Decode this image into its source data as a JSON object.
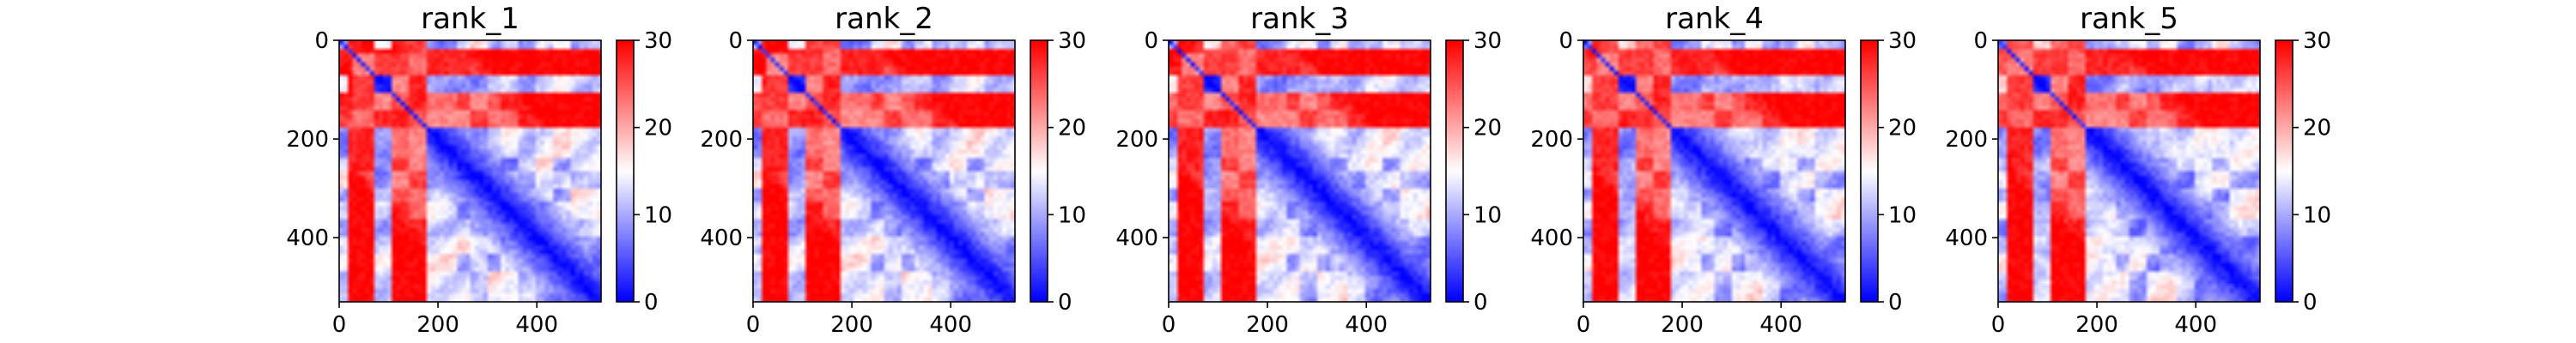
{
  "chart_data": [
    {
      "type": "heatmap",
      "title": "rank_1",
      "matrix_size": 530,
      "xlim": [
        0,
        530
      ],
      "ylim": [
        530,
        0
      ],
      "xticks": [
        0,
        200,
        400
      ],
      "yticks": [
        0,
        200,
        400
      ],
      "colorbar": {
        "min": 0,
        "max": 30,
        "ticks": [
          0,
          10,
          20,
          30
        ]
      },
      "colormap": [
        "#0000ff",
        "#ffffff",
        "#ff0000"
      ],
      "domain_boundaries": [
        20,
        75,
        110,
        145,
        175,
        235,
        265,
        300,
        330,
        360,
        395,
        430,
        470
      ]
    },
    {
      "type": "heatmap",
      "title": "rank_2",
      "matrix_size": 530,
      "xlim": [
        0,
        530
      ],
      "ylim": [
        530,
        0
      ],
      "xticks": [
        0,
        200,
        400
      ],
      "yticks": [
        0,
        200,
        400
      ],
      "colorbar": {
        "min": 0,
        "max": 30,
        "ticks": [
          0,
          10,
          20,
          30
        ]
      },
      "colormap": [
        "#0000ff",
        "#ffffff",
        "#ff0000"
      ],
      "domain_boundaries": [
        20,
        75,
        110,
        145,
        175,
        235,
        265,
        300,
        330,
        360,
        395,
        430,
        470
      ]
    },
    {
      "type": "heatmap",
      "title": "rank_3",
      "matrix_size": 530,
      "xlim": [
        0,
        530
      ],
      "ylim": [
        530,
        0
      ],
      "xticks": [
        0,
        200,
        400
      ],
      "yticks": [
        0,
        200,
        400
      ],
      "colorbar": {
        "min": 0,
        "max": 30,
        "ticks": [
          0,
          10,
          20,
          30
        ]
      },
      "colormap": [
        "#0000ff",
        "#ffffff",
        "#ff0000"
      ],
      "domain_boundaries": [
        20,
        75,
        110,
        145,
        175,
        235,
        265,
        300,
        330,
        360,
        395,
        430,
        470
      ]
    },
    {
      "type": "heatmap",
      "title": "rank_4",
      "matrix_size": 530,
      "xlim": [
        0,
        530
      ],
      "ylim": [
        530,
        0
      ],
      "xticks": [
        0,
        200,
        400
      ],
      "yticks": [
        0,
        200,
        400
      ],
      "colorbar": {
        "min": 0,
        "max": 30,
        "ticks": [
          0,
          10,
          20,
          30
        ]
      },
      "colormap": [
        "#0000ff",
        "#ffffff",
        "#ff0000"
      ],
      "domain_boundaries": [
        20,
        75,
        110,
        145,
        175,
        235,
        265,
        300,
        330,
        360,
        395,
        430,
        470
      ]
    },
    {
      "type": "heatmap",
      "title": "rank_5",
      "matrix_size": 530,
      "xlim": [
        0,
        530
      ],
      "ylim": [
        530,
        0
      ],
      "xticks": [
        0,
        200,
        400
      ],
      "yticks": [
        0,
        200,
        400
      ],
      "colorbar": {
        "min": 0,
        "max": 30,
        "ticks": [
          0,
          10,
          20,
          30
        ]
      },
      "colormap": [
        "#0000ff",
        "#ffffff",
        "#ff0000"
      ],
      "domain_boundaries": [
        20,
        75,
        110,
        145,
        175,
        235,
        265,
        300,
        330,
        360,
        395,
        430,
        470
      ]
    }
  ]
}
